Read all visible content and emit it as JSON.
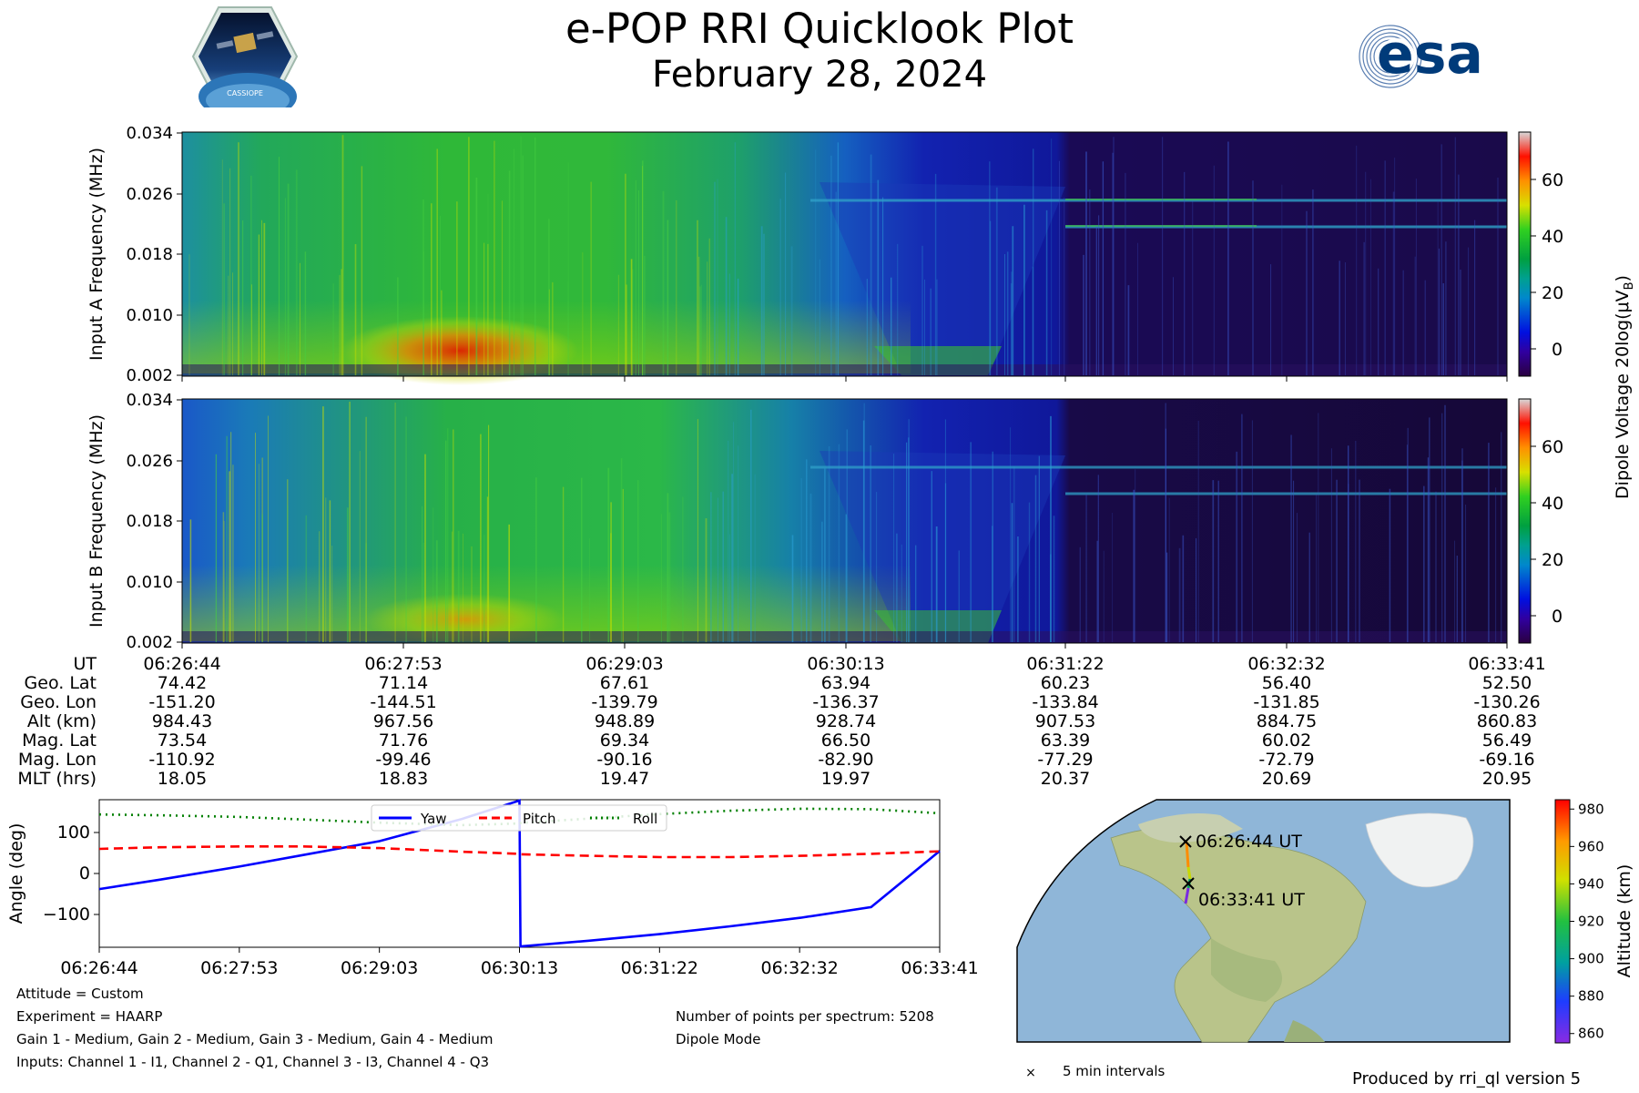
{
  "header": {
    "title": "e-POP RRI Quicklook Plot",
    "date": "February 28, 2024",
    "esa_logo_text": "esa",
    "cassiope_logo_text": "CASSIOPE"
  },
  "spectrogram": {
    "panel_a_ylabel": "Input A Frequency (MHz)",
    "panel_b_ylabel": "Input B Frequency (MHz)",
    "y_ticks": [
      "0.034",
      "0.026",
      "0.018",
      "0.010",
      "0.002"
    ],
    "colorbar_label": "Dipole Voltage 20log(μV",
    "colorbar_label_sub": "B",
    "colorbar_label_end": ")",
    "colorbar_ticks": [
      "60",
      "40",
      "20",
      "0"
    ]
  },
  "ephemeris": {
    "row_labels": [
      "UT",
      "Geo. Lat",
      "Geo. Lon",
      "Alt (km)",
      "Mag. Lat",
      "Mag. Lon",
      "MLT (hrs)"
    ],
    "columns": [
      [
        "06:26:44",
        "74.42",
        "-151.20",
        "984.43",
        "73.54",
        "-110.92",
        "18.05"
      ],
      [
        "06:27:53",
        "71.14",
        "-144.51",
        "967.56",
        "71.76",
        "-99.46",
        "18.83"
      ],
      [
        "06:29:03",
        "67.61",
        "-139.79",
        "948.89",
        "69.34",
        "-90.16",
        "19.47"
      ],
      [
        "06:30:13",
        "63.94",
        "-136.37",
        "928.74",
        "66.50",
        "-82.90",
        "19.97"
      ],
      [
        "06:31:22",
        "60.23",
        "-133.84",
        "907.53",
        "63.39",
        "-77.29",
        "20.37"
      ],
      [
        "06:32:32",
        "56.40",
        "-131.85",
        "884.75",
        "60.02",
        "-72.79",
        "20.69"
      ],
      [
        "06:33:41",
        "52.50",
        "-130.26",
        "860.83",
        "56.49",
        "-69.16",
        "20.95"
      ]
    ]
  },
  "chart_data": [
    {
      "type": "line",
      "title": "",
      "xlabel": "",
      "ylabel": "Angle (deg)",
      "x_tick_labels": [
        "06:26:44",
        "06:27:53",
        "06:29:03",
        "06:30:13",
        "06:31:22",
        "06:32:32",
        "06:33:41"
      ],
      "y_tick_labels": [
        "100",
        "0",
        "−100"
      ],
      "ylim": [
        -180,
        180
      ],
      "x": [
        0,
        30,
        69.5,
        100,
        139,
        180,
        208.5,
        209,
        243,
        278,
        313,
        348,
        383,
        417
      ],
      "series": [
        {
          "name": "Yaw",
          "color": "#0000ff",
          "style": "solid",
          "values": [
            -38,
            -15,
            17,
            44,
            79,
            133,
            178,
            -178,
            -164,
            -148,
            -129,
            -108,
            -82,
            55
          ]
        },
        {
          "name": "Pitch",
          "color": "#ff0000",
          "style": "dashed",
          "values": [
            60,
            64,
            66,
            66,
            62,
            53,
            48,
            47,
            43,
            40,
            40,
            43,
            48,
            54
          ]
        },
        {
          "name": "Roll",
          "color": "#008000",
          "style": "dotted",
          "values": [
            144,
            142,
            138,
            132,
            124,
            118,
            122,
            123,
            134,
            145,
            153,
            158,
            157,
            147
          ]
        }
      ],
      "legend_position": "top-center"
    },
    {
      "type": "scatter",
      "title": "",
      "xlabel": "",
      "ylabel": "Altitude (km)",
      "colorbar_ticks": [
        "980",
        "960",
        "940",
        "920",
        "900",
        "880",
        "860"
      ],
      "points": [
        {
          "label": "06:26:44 UT",
          "lat": 74.42,
          "lon": -151.2,
          "alt": 984.43
        },
        {
          "label": "06:33:41 UT",
          "lat": 52.5,
          "lon": -130.26,
          "alt": 860.83
        }
      ],
      "legend": "5 min intervals"
    }
  ],
  "footer": {
    "attitude": "Attitude = Custom",
    "experiment": "Experiment = HAARP",
    "gains": "Gain 1 - Medium, Gain 2 - Medium, Gain 3 - Medium, Gain 4 - Medium",
    "inputs": "Inputs: Channel 1 - I1, Channel 2 - Q1, Channel 3 - I3, Channel 4 - Q3",
    "points": "Number of points per spectrum: 5208",
    "mode": "Dipole Mode",
    "produced_by": "Produced by rri_ql version 5"
  }
}
